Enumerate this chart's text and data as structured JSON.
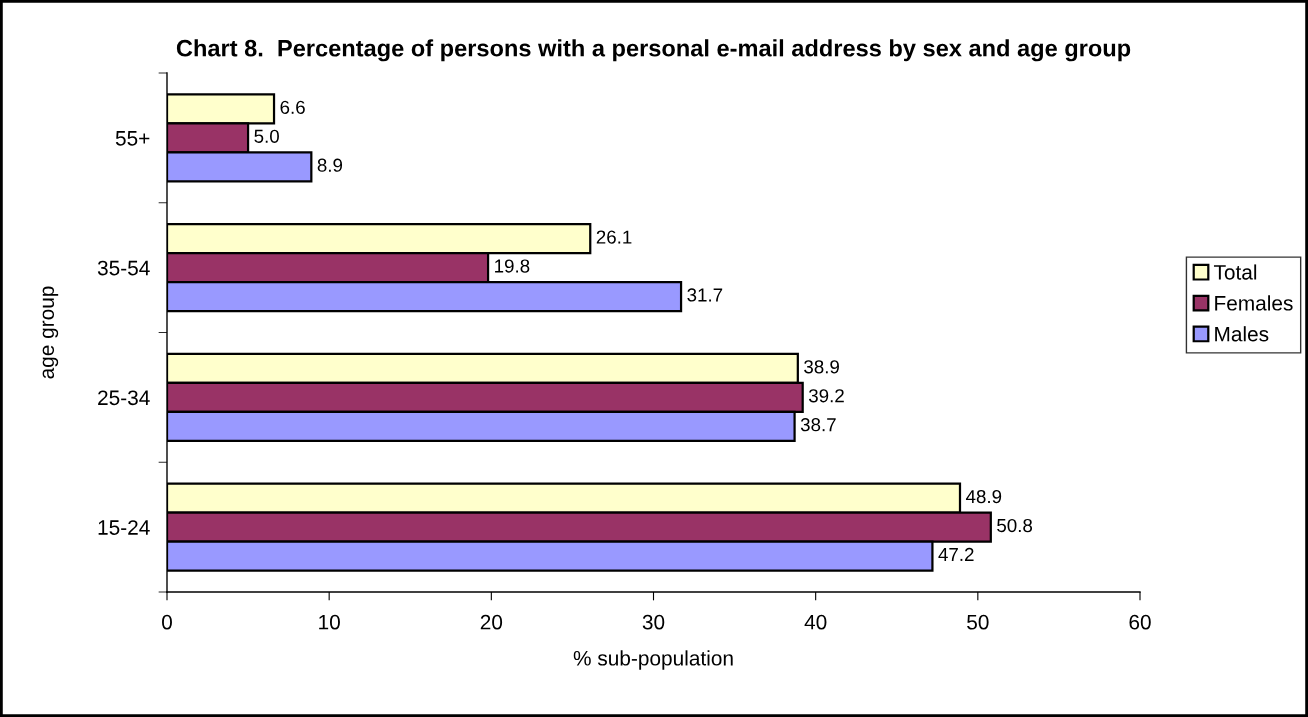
{
  "chart_data": {
    "type": "bar",
    "orientation": "horizontal",
    "title": "Chart 8.  Percentage of persons with a personal e-mail address by sex and age group",
    "xlabel": "% sub-population",
    "ylabel": "age group",
    "categories": [
      "55+",
      "35-54",
      "25-34",
      "15-24"
    ],
    "series": [
      {
        "name": "Total",
        "color": "#ffffcc",
        "values": [
          6.6,
          26.1,
          38.9,
          48.9
        ],
        "value_labels": [
          "6.6",
          "26.1",
          "38.9",
          "48.9"
        ]
      },
      {
        "name": "Females",
        "color": "#993366",
        "values": [
          5.0,
          19.8,
          39.2,
          50.8
        ],
        "value_labels": [
          "5.0",
          "19.8",
          "39.2",
          "50.8"
        ]
      },
      {
        "name": "Males",
        "color": "#9999ff",
        "values": [
          8.9,
          31.7,
          38.7,
          47.2
        ],
        "value_labels": [
          "8.9",
          "31.7",
          "38.7",
          "47.2"
        ]
      }
    ],
    "xlim": [
      0,
      60
    ],
    "xticks": [
      0,
      10,
      20,
      30,
      40,
      50,
      60
    ],
    "grid": false,
    "legend": "right"
  }
}
